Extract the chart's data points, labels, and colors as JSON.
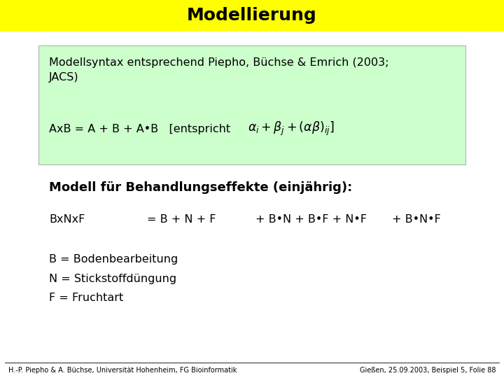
{
  "title": "Modellierung",
  "title_bg": "#FFFF00",
  "title_fontsize": 18,
  "bg_color": "#FFFFFF",
  "box_bg": "#CCFFCC",
  "box_edge": "#AAAAAA",
  "modell_header": "Modell für Behandlungseffekte (einjährig):",
  "b_label": "B = Bodenbearbeitung",
  "n_label": "N = Stickstoffdüngung",
  "f_label": "F = Fruchtart",
  "footer_left": "H.-P. Piepho & A. Büchse, Universität Hohenheim, FG Bioinformatik",
  "footer_right": "Gießen, 25.09.2003, Beispiel 5, Folie 88",
  "footer_fontsize": 7,
  "main_fontsize": 11.5,
  "bold_fontsize": 13
}
